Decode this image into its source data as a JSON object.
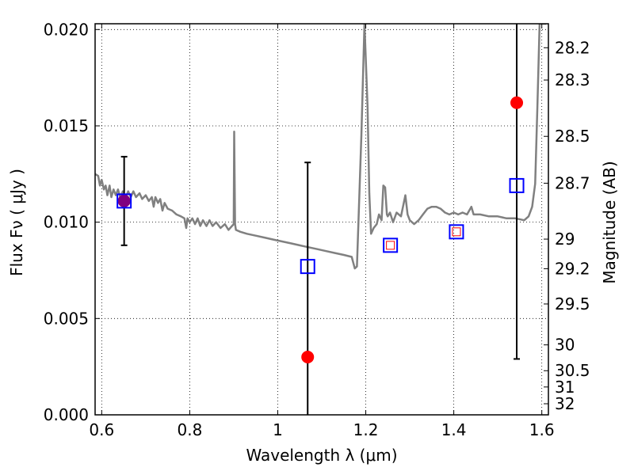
{
  "chart_data": {
    "type": "scatter",
    "xlabel": "Wavelength  λ (μm)",
    "ylabel": "Flux  Fν  ( μJy )",
    "ylabel_right": "Magnitude (AB)",
    "xlim": [
      0.585,
      1.615
    ],
    "ylim": [
      0.0,
      0.0203
    ],
    "grid": true,
    "x_ticks": [
      {
        "value": 0.6,
        "label": "0.6"
      },
      {
        "value": 0.8,
        "label": "0.8"
      },
      {
        "value": 1.0,
        "label": "1"
      },
      {
        "value": 1.2,
        "label": "1.2"
      },
      {
        "value": 1.4,
        "label": "1.4"
      },
      {
        "value": 1.6,
        "label": "1.6"
      }
    ],
    "y_ticks": [
      {
        "value": 0.0,
        "label": "0.000"
      },
      {
        "value": 0.005,
        "label": "0.005"
      },
      {
        "value": 0.01,
        "label": "0.010"
      },
      {
        "value": 0.015,
        "label": "0.015"
      },
      {
        "value": 0.02,
        "label": "0.020"
      }
    ],
    "right_ticks": [
      {
        "value": 28.2,
        "label": "28.2"
      },
      {
        "value": 28.3,
        "label": "28.3"
      },
      {
        "value": 28.5,
        "label": "28.5"
      },
      {
        "value": 28.7,
        "label": "28.7"
      },
      {
        "value": 29,
        "label": "29"
      },
      {
        "value": 29.2,
        "label": "29.2"
      },
      {
        "value": 29.5,
        "label": "29.5"
      },
      {
        "value": 30,
        "label": "30"
      },
      {
        "value": 30.5,
        "label": "30.5"
      },
      {
        "value": 31,
        "label": "31"
      },
      {
        "value": 32,
        "label": "32"
      }
    ],
    "series": [
      {
        "kind": "line",
        "color": "#808080",
        "points": [
          [
            0.585,
            0.0125
          ],
          [
            0.592,
            0.0124
          ],
          [
            0.596,
            0.0119
          ],
          [
            0.6,
            0.0122
          ],
          [
            0.605,
            0.0117
          ],
          [
            0.609,
            0.0119
          ],
          [
            0.613,
            0.0114
          ],
          [
            0.618,
            0.0119
          ],
          [
            0.622,
            0.0113
          ],
          [
            0.627,
            0.0117
          ],
          [
            0.632,
            0.0114
          ],
          [
            0.637,
            0.0117
          ],
          [
            0.642,
            0.0113
          ],
          [
            0.648,
            0.0116
          ],
          [
            0.653,
            0.0112
          ],
          [
            0.66,
            0.0116
          ],
          [
            0.666,
            0.0113
          ],
          [
            0.672,
            0.0116
          ],
          [
            0.678,
            0.0113
          ],
          [
            0.686,
            0.0115
          ],
          [
            0.692,
            0.0112
          ],
          [
            0.7,
            0.0114
          ],
          [
            0.707,
            0.0111
          ],
          [
            0.714,
            0.0113
          ],
          [
            0.718,
            0.0108
          ],
          [
            0.722,
            0.0113
          ],
          [
            0.728,
            0.011
          ],
          [
            0.733,
            0.0112
          ],
          [
            0.738,
            0.0106
          ],
          [
            0.743,
            0.011
          ],
          [
            0.75,
            0.0107
          ],
          [
            0.76,
            0.0106
          ],
          [
            0.77,
            0.0104
          ],
          [
            0.78,
            0.0103
          ],
          [
            0.788,
            0.0102
          ],
          [
            0.792,
            0.0097
          ],
          [
            0.795,
            0.0102
          ],
          [
            0.8,
            0.01
          ],
          [
            0.806,
            0.0102
          ],
          [
            0.812,
            0.0099
          ],
          [
            0.818,
            0.0102
          ],
          [
            0.824,
            0.0098
          ],
          [
            0.83,
            0.0101
          ],
          [
            0.838,
            0.0098
          ],
          [
            0.845,
            0.0101
          ],
          [
            0.852,
            0.0098
          ],
          [
            0.86,
            0.01
          ],
          [
            0.87,
            0.0097
          ],
          [
            0.88,
            0.0099
          ],
          [
            0.888,
            0.0096
          ],
          [
            0.896,
            0.0098
          ],
          [
            0.9,
            0.0099
          ],
          [
            0.901,
            0.0147
          ],
          [
            0.903,
            0.0099
          ],
          [
            0.905,
            0.0096
          ],
          [
            0.915,
            0.0095
          ],
          [
            0.93,
            0.0094
          ],
          [
            0.95,
            0.0093
          ],
          [
            0.97,
            0.0092
          ],
          [
            0.99,
            0.0091
          ],
          [
            1.01,
            0.009
          ],
          [
            1.03,
            0.0089
          ],
          [
            1.05,
            0.0088
          ],
          [
            1.07,
            0.0087
          ],
          [
            1.09,
            0.0086
          ],
          [
            1.11,
            0.0085
          ],
          [
            1.13,
            0.0084
          ],
          [
            1.15,
            0.0083
          ],
          [
            1.168,
            0.0082
          ],
          [
            1.175,
            0.0076
          ],
          [
            1.18,
            0.0077
          ],
          [
            1.19,
            0.0145
          ],
          [
            1.197,
            0.0203
          ],
          [
            1.204,
            0.016
          ],
          [
            1.208,
            0.0115
          ],
          [
            1.212,
            0.0094
          ],
          [
            1.218,
            0.0097
          ],
          [
            1.225,
            0.0099
          ],
          [
            1.23,
            0.0104
          ],
          [
            1.236,
            0.0101
          ],
          [
            1.24,
            0.0119
          ],
          [
            1.244,
            0.0118
          ],
          [
            1.248,
            0.0104
          ],
          [
            1.25,
            0.0103
          ],
          [
            1.255,
            0.0105
          ],
          [
            1.262,
            0.01
          ],
          [
            1.27,
            0.0105
          ],
          [
            1.28,
            0.0103
          ],
          [
            1.29,
            0.0114
          ],
          [
            1.295,
            0.0104
          ],
          [
            1.3,
            0.0101
          ],
          [
            1.31,
            0.0099
          ],
          [
            1.32,
            0.0101
          ],
          [
            1.33,
            0.0104
          ],
          [
            1.34,
            0.0107
          ],
          [
            1.35,
            0.0108
          ],
          [
            1.36,
            0.0108
          ],
          [
            1.37,
            0.0107
          ],
          [
            1.38,
            0.0105
          ],
          [
            1.39,
            0.0104
          ],
          [
            1.4,
            0.0105
          ],
          [
            1.41,
            0.0104
          ],
          [
            1.42,
            0.0105
          ],
          [
            1.43,
            0.0104
          ],
          [
            1.44,
            0.0108
          ],
          [
            1.445,
            0.0104
          ],
          [
            1.46,
            0.0104
          ],
          [
            1.48,
            0.0103
          ],
          [
            1.5,
            0.0103
          ],
          [
            1.52,
            0.0102
          ],
          [
            1.54,
            0.0102
          ],
          [
            1.56,
            0.0101
          ],
          [
            1.57,
            0.0103
          ],
          [
            1.578,
            0.0108
          ],
          [
            1.585,
            0.012
          ],
          [
            1.59,
            0.016
          ],
          [
            1.595,
            0.0203
          ],
          [
            1.61,
            0.0203
          ]
        ]
      },
      {
        "kind": "marker",
        "shape": "circle",
        "color": "#ff0000",
        "points": [
          [
            0.651,
            0.0111
          ],
          [
            1.068,
            0.003
          ],
          [
            1.543,
            0.0162
          ]
        ]
      },
      {
        "kind": "marker",
        "shape": "circle",
        "color": "#800080",
        "points": [
          [
            0.651,
            0.0111
          ]
        ]
      },
      {
        "kind": "marker",
        "shape": "square-open",
        "color": "#0000ff",
        "points": [
          [
            0.651,
            0.0111
          ],
          [
            1.068,
            0.0077
          ],
          [
            1.256,
            0.0088
          ],
          [
            1.406,
            0.0095
          ],
          [
            1.543,
            0.0119
          ]
        ]
      },
      {
        "kind": "marker",
        "shape": "square-open-small",
        "color": "#ff0000",
        "points": [
          [
            1.256,
            0.0088
          ],
          [
            1.406,
            0.0095
          ]
        ]
      }
    ],
    "error_bars": [
      {
        "x": 0.651,
        "low": 0.0088,
        "high": 0.0134
      },
      {
        "x": 1.068,
        "low": 0.0,
        "high": 0.0131
      },
      {
        "x": 1.543,
        "low": 0.0029,
        "high": 0.0203
      }
    ]
  }
}
